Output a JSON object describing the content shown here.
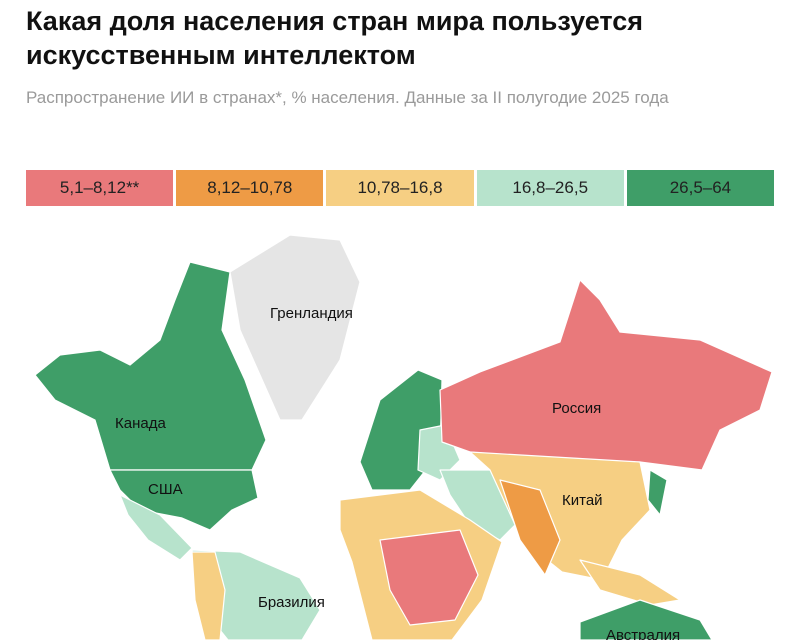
{
  "title": "Какая доля населения стран мира пользуется искусственным интеллектом",
  "subtitle": "Распространение ИИ в странах*, % населения. Данные за II полугодие 2025 года",
  "legend": [
    {
      "label": "5,1–8,12**",
      "color": "#e9797b"
    },
    {
      "label": "8,12–10,78",
      "color": "#ee9b45"
    },
    {
      "label": "10,78–16,8",
      "color": "#f6cf83"
    },
    {
      "label": "16,8–26,5",
      "color": "#b7e3cc"
    },
    {
      "label": "26,5–64",
      "color": "#3f9e68"
    }
  ],
  "no_data_color": "#e5e5e5",
  "labels": {
    "greenland": "Гренландия",
    "canada": "Канада",
    "usa": "США",
    "russia": "Россия",
    "china": "Китай",
    "brazil": "Бразилия",
    "australia": "Австралия"
  }
}
